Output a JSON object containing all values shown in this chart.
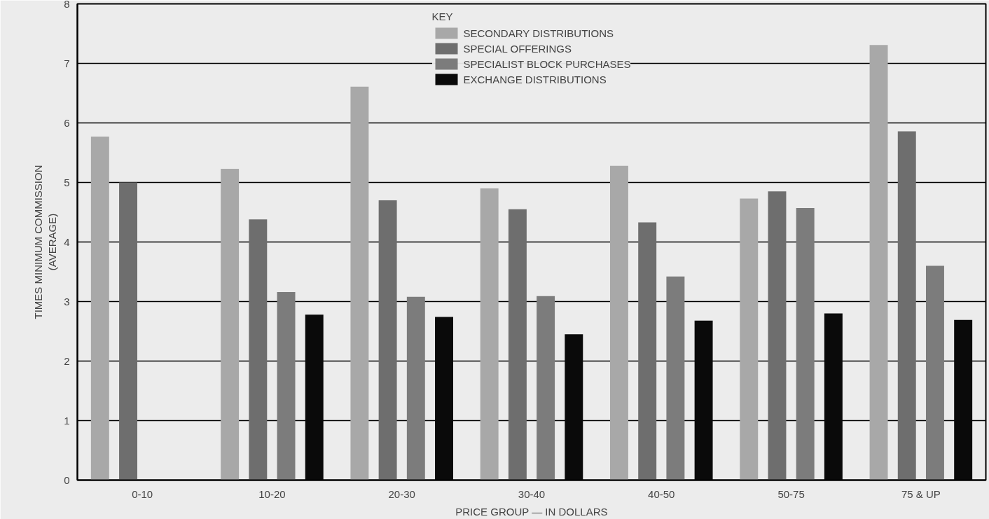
{
  "chart_data": {
    "type": "bar",
    "xlabel": "PRICE GROUP — IN DOLLARS",
    "ylabel": "TIMES MINIMUM COMMISSION\n(AVERAGE)",
    "legend_title": "KEY",
    "categories": [
      "0-10",
      "10-20",
      "20-30",
      "30-40",
      "40-50",
      "50-75",
      "75 & UP"
    ],
    "series": [
      {
        "name": "SECONDARY DISTRIBUTIONS",
        "color": "#a8a8a8",
        "values": [
          5.77,
          5.23,
          6.61,
          4.9,
          5.28,
          4.73,
          7.31
        ]
      },
      {
        "name": "SPECIAL OFFERINGS",
        "color": "#6e6e6e",
        "values": [
          5.0,
          4.38,
          4.7,
          4.55,
          4.33,
          4.85,
          5.86
        ]
      },
      {
        "name": "SPECIALIST BLOCK PURCHASES",
        "color": "#7c7c7c",
        "values": [
          null,
          3.16,
          3.08,
          3.09,
          3.42,
          4.57,
          3.6
        ]
      },
      {
        "name": "EXCHANGE DISTRIBUTIONS",
        "color": "#0a0a0a",
        "values": [
          null,
          2.78,
          2.74,
          2.45,
          2.68,
          2.8,
          2.69
        ]
      }
    ],
    "ylim": [
      0,
      8
    ],
    "yticks": [
      0,
      1,
      2,
      3,
      4,
      5,
      6,
      7,
      8
    ],
    "grid": "y",
    "legend": "top"
  }
}
